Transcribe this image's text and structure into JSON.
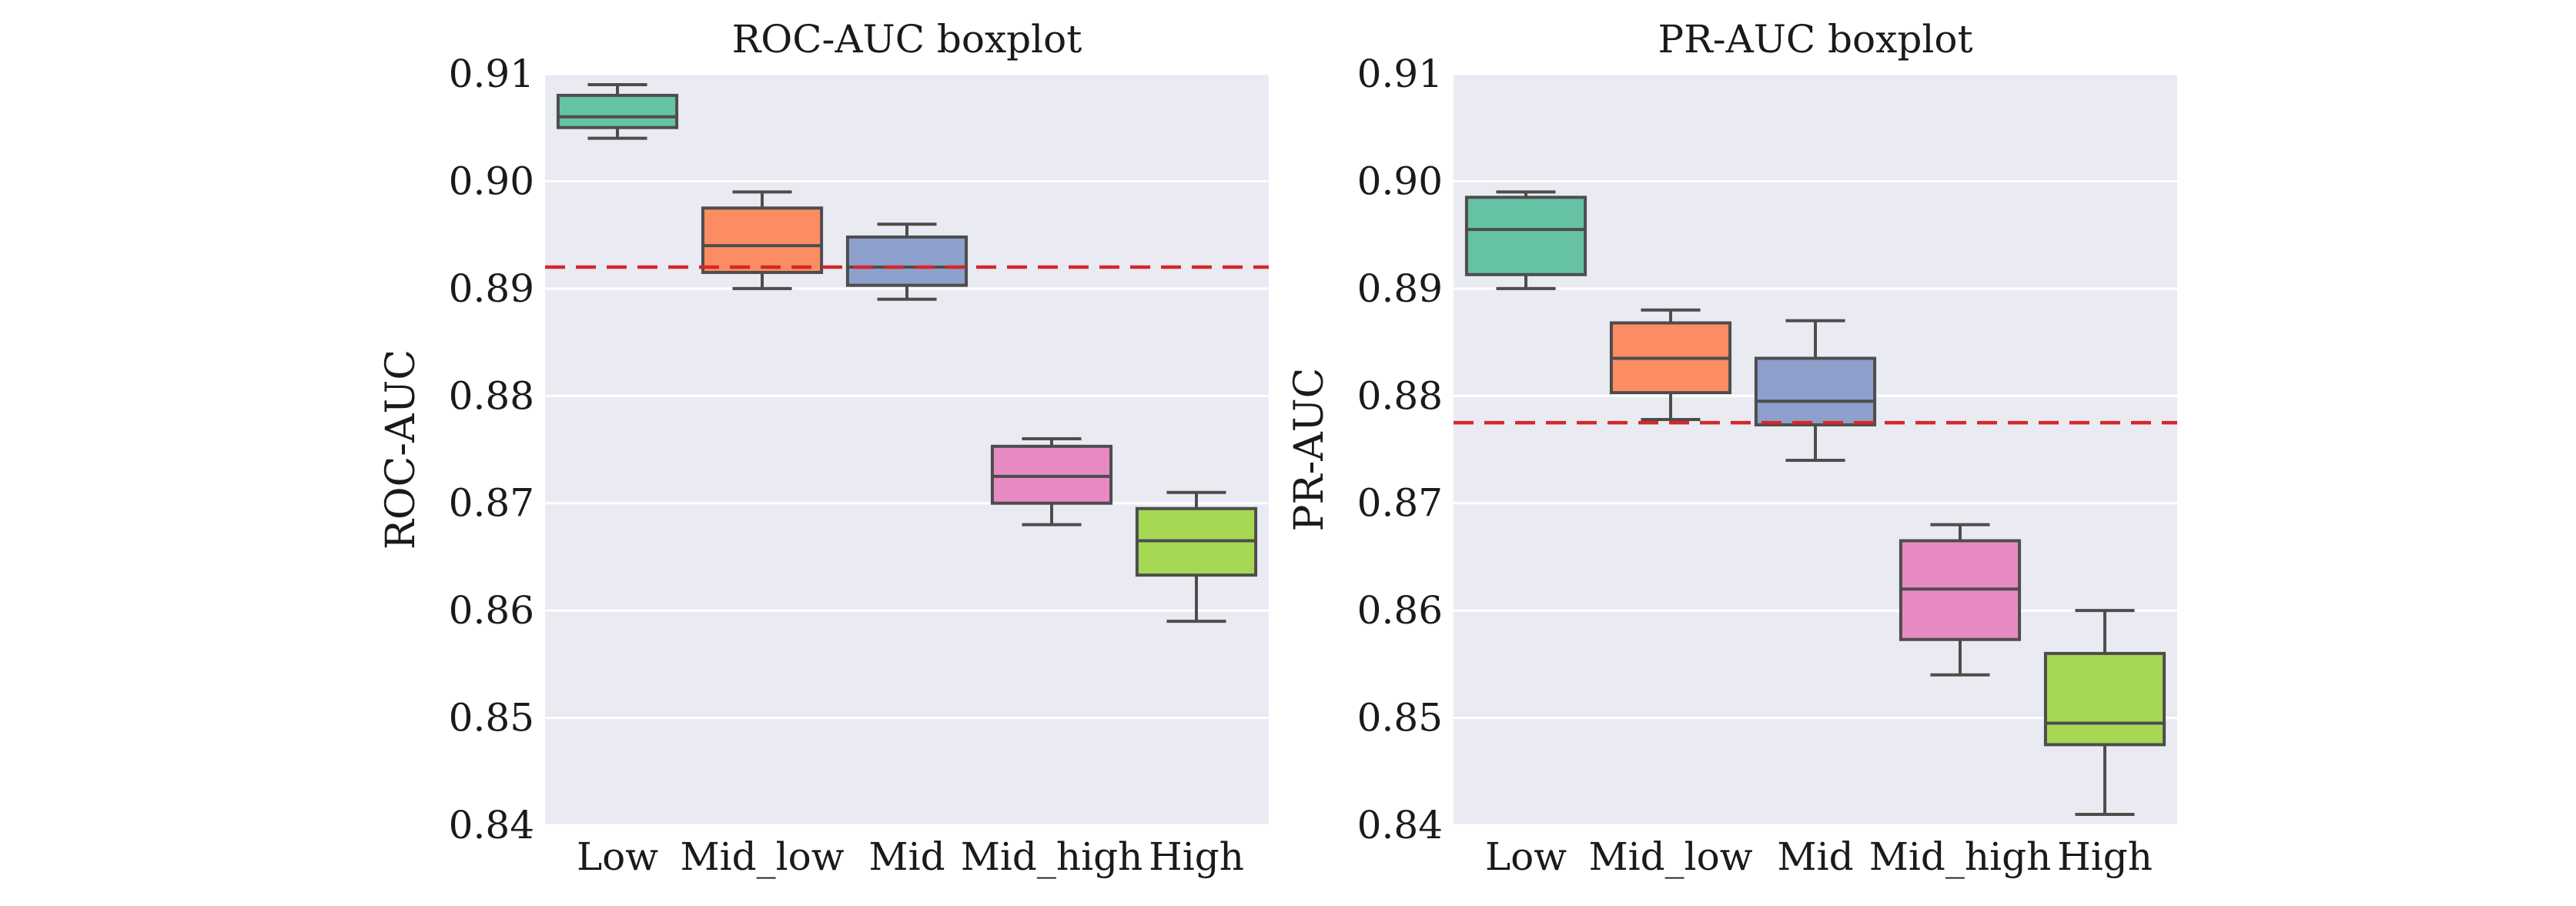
{
  "chart_data": [
    {
      "type": "boxplot",
      "title": "ROC-AUC boxplot",
      "xlabel": "",
      "ylabel": "ROC-AUC",
      "ylim": [
        0.84,
        0.91
      ],
      "yticks": [
        "0.84",
        "0.85",
        "0.86",
        "0.87",
        "0.88",
        "0.89",
        "0.90",
        "0.91"
      ],
      "grid": true,
      "categories": [
        "Low",
        "Mid_low",
        "Mid",
        "Mid_high",
        "High"
      ],
      "boxes": [
        {
          "whisker_low": 0.904,
          "q1": 0.905,
          "median": 0.906,
          "q3": 0.908,
          "whisker_high": 0.909
        },
        {
          "whisker_low": 0.89,
          "q1": 0.8915,
          "median": 0.894,
          "q3": 0.8975,
          "whisker_high": 0.899
        },
        {
          "whisker_low": 0.889,
          "q1": 0.8903,
          "median": 0.892,
          "q3": 0.8948,
          "whisker_high": 0.896
        },
        {
          "whisker_low": 0.868,
          "q1": 0.87,
          "median": 0.8725,
          "q3": 0.8753,
          "whisker_high": 0.876
        },
        {
          "whisker_low": 0.859,
          "q1": 0.8633,
          "median": 0.8665,
          "q3": 0.8695,
          "whisker_high": 0.871
        }
      ],
      "reference_line": 0.892,
      "colors": [
        "#66c2a5",
        "#fc8d62",
        "#8da0cb",
        "#e78ac3",
        "#a6d854"
      ],
      "reference_color": "#d62728"
    },
    {
      "type": "boxplot",
      "title": "PR-AUC boxplot",
      "xlabel": "",
      "ylabel": "PR-AUC",
      "ylim": [
        0.84,
        0.91
      ],
      "yticks": [
        "0.84",
        "0.85",
        "0.86",
        "0.87",
        "0.88",
        "0.89",
        "0.90",
        "0.91"
      ],
      "grid": true,
      "categories": [
        "Low",
        "Mid_low",
        "Mid",
        "Mid_high",
        "High"
      ],
      "boxes": [
        {
          "whisker_low": 0.89,
          "q1": 0.8913,
          "median": 0.8955,
          "q3": 0.8985,
          "whisker_high": 0.899
        },
        {
          "whisker_low": 0.8778,
          "q1": 0.8803,
          "median": 0.8835,
          "q3": 0.8868,
          "whisker_high": 0.888
        },
        {
          "whisker_low": 0.874,
          "q1": 0.8773,
          "median": 0.8795,
          "q3": 0.8835,
          "whisker_high": 0.887
        },
        {
          "whisker_low": 0.854,
          "q1": 0.8573,
          "median": 0.862,
          "q3": 0.8665,
          "whisker_high": 0.868
        },
        {
          "whisker_low": 0.841,
          "q1": 0.8475,
          "median": 0.8495,
          "q3": 0.856,
          "whisker_high": 0.86
        }
      ],
      "reference_line": 0.8775,
      "colors": [
        "#66c2a5",
        "#fc8d62",
        "#8da0cb",
        "#e78ac3",
        "#a6d854"
      ],
      "reference_color": "#d62728"
    }
  ]
}
